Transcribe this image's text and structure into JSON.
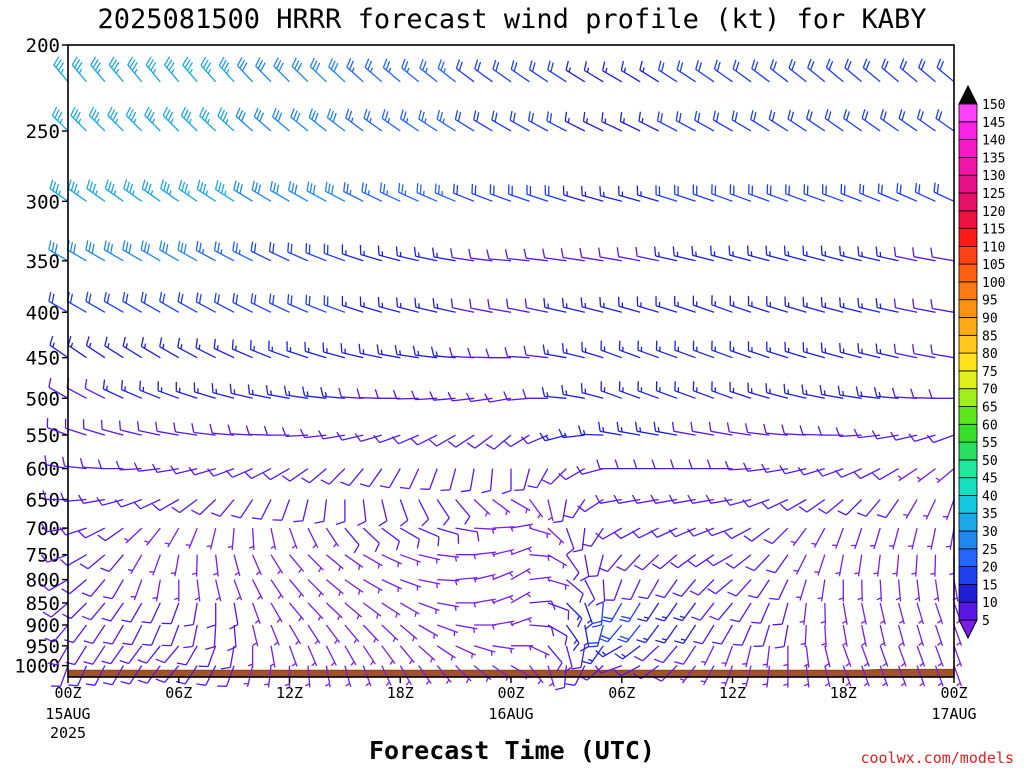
{
  "chart_data": {
    "type": "wind_barb_profile",
    "title": "2025081500 HRRR forecast wind profile (kt) for KABY",
    "xlabel": "Forecast Time (UTC)",
    "watermark": "coolwx.com/models",
    "y_axis": {
      "label": "",
      "scale": "pressure (hPa), inverted",
      "ylim": [
        1030,
        200
      ],
      "ticks": [
        200,
        250,
        300,
        350,
        400,
        450,
        500,
        550,
        600,
        650,
        700,
        750,
        800,
        850,
        900,
        950,
        1000
      ]
    },
    "x_axis": {
      "range_hours": [
        0,
        48
      ],
      "ticks": [
        {
          "hour": 0,
          "label": "00Z",
          "sub": [
            "15AUG",
            "2025"
          ]
        },
        {
          "hour": 6,
          "label": "06Z",
          "sub": []
        },
        {
          "hour": 12,
          "label": "12Z",
          "sub": []
        },
        {
          "hour": 18,
          "label": "18Z",
          "sub": []
        },
        {
          "hour": 24,
          "label": "00Z",
          "sub": [
            "16AUG"
          ]
        },
        {
          "hour": 30,
          "label": "06Z",
          "sub": []
        },
        {
          "hour": 36,
          "label": "12Z",
          "sub": []
        },
        {
          "hour": 42,
          "label": "18Z",
          "sub": []
        },
        {
          "hour": 48,
          "label": "00Z",
          "sub": [
            "17AUG"
          ]
        }
      ]
    },
    "colorbar": {
      "levels": [
        5,
        10,
        15,
        20,
        25,
        30,
        35,
        40,
        45,
        50,
        55,
        60,
        65,
        70,
        75,
        80,
        85,
        90,
        95,
        100,
        105,
        110,
        115,
        120,
        125,
        130,
        135,
        140,
        145,
        150
      ],
      "colors": [
        "#7a1de8",
        "#5a16e6",
        "#1f1fd6",
        "#1e3ff0",
        "#2266ff",
        "#1e88ee",
        "#1aa8e8",
        "#12c8e0",
        "#16e0c0",
        "#1ee89a",
        "#28e060",
        "#36e028",
        "#5ee61a",
        "#a0ee1a",
        "#e0f01a",
        "#ffe41a",
        "#ffc81a",
        "#ffaa12",
        "#ff9010",
        "#ff7a10",
        "#ff6010",
        "#ff4010",
        "#ff1a1a",
        "#f0123e",
        "#e8106a",
        "#e81088",
        "#f014a8",
        "#f818c8",
        "#ff22e8",
        "#ff40ff"
      ]
    },
    "profile": {
      "levels": [
        1000,
        950,
        900,
        850,
        800,
        750,
        700,
        650,
        600,
        550,
        500,
        450,
        400,
        350,
        300,
        250,
        220
      ],
      "time_step_hours": 1,
      "surface_pressure_hpa": [
        1012,
        1012,
        1012,
        1012,
        1012,
        1012,
        1012,
        1012,
        1012,
        1012,
        1012,
        1012,
        1012,
        1012,
        1012,
        1012,
        1012,
        1012,
        1012,
        1012,
        1012,
        1012,
        1012,
        1012,
        1012,
        1012,
        1012,
        1012,
        1012,
        1012,
        1012,
        1012,
        1012,
        1012,
        1012,
        1012,
        1012,
        1012,
        1012,
        1012,
        1012,
        1012,
        1012,
        1012,
        1010,
        1010,
        1010,
        1010,
        1010
      ],
      "speed_kt_by_level_at_00Z_06Z_12Z_18Z_00Z_06Z_12Z_18Z_00Z": {
        "1000": [
          10,
          10,
          5,
          5,
          5,
          10,
          5,
          5,
          5
        ],
        "950": [
          10,
          10,
          5,
          5,
          5,
          15,
          5,
          5,
          5
        ],
        "900": [
          10,
          10,
          5,
          5,
          5,
          20,
          10,
          5,
          5
        ],
        "850": [
          10,
          10,
          5,
          5,
          5,
          20,
          10,
          5,
          5
        ],
        "800": [
          10,
          5,
          5,
          5,
          5,
          10,
          10,
          5,
          5
        ],
        "750": [
          10,
          5,
          5,
          5,
          5,
          10,
          10,
          5,
          5
        ],
        "700": [
          10,
          5,
          5,
          10,
          5,
          10,
          10,
          5,
          5
        ],
        "650": [
          10,
          10,
          10,
          10,
          5,
          10,
          10,
          10,
          5
        ],
        "600": [
          10,
          10,
          10,
          10,
          10,
          10,
          10,
          10,
          5
        ],
        "550": [
          10,
          10,
          10,
          10,
          10,
          15,
          10,
          10,
          10
        ],
        "500": [
          10,
          15,
          15,
          10,
          10,
          15,
          15,
          15,
          10
        ],
        "450": [
          15,
          15,
          15,
          15,
          10,
          15,
          15,
          15,
          10
        ],
        "400": [
          20,
          20,
          20,
          15,
          10,
          15,
          15,
          15,
          10
        ],
        "350": [
          30,
          30,
          20,
          15,
          10,
          10,
          15,
          15,
          10
        ],
        "300": [
          35,
          35,
          30,
          25,
          20,
          15,
          20,
          20,
          20
        ],
        "250": [
          35,
          35,
          30,
          25,
          20,
          15,
          20,
          20,
          20
        ],
        "220": [
          35,
          35,
          30,
          25,
          20,
          15,
          20,
          20,
          20
        ]
      },
      "direction_from_deg_by_level_at_00Z_06Z_12Z_18Z_00Z_06Z_12Z_18Z_00Z": {
        "1000": [
          200,
          220,
          180,
          150,
          120,
          250,
          200,
          160,
          160
        ],
        "950": [
          210,
          220,
          160,
          140,
          90,
          240,
          200,
          160,
          160
        ],
        "900": [
          220,
          200,
          150,
          130,
          70,
          220,
          210,
          170,
          160
        ],
        "850": [
          230,
          200,
          140,
          120,
          60,
          210,
          220,
          170,
          160
        ],
        "800": [
          240,
          180,
          140,
          110,
          60,
          200,
          230,
          180,
          170
        ],
        "750": [
          250,
          190,
          140,
          110,
          70,
          220,
          240,
          190,
          180
        ],
        "700": [
          260,
          210,
          160,
          120,
          80,
          240,
          250,
          200,
          190
        ],
        "650": [
          270,
          240,
          200,
          160,
          120,
          260,
          260,
          230,
          200
        ],
        "600": [
          280,
          260,
          240,
          210,
          180,
          270,
          270,
          250,
          230
        ],
        "550": [
          290,
          280,
          270,
          250,
          230,
          280,
          280,
          270,
          250
        ],
        "500": [
          300,
          290,
          280,
          270,
          260,
          290,
          290,
          280,
          270
        ],
        "450": [
          305,
          300,
          290,
          280,
          270,
          290,
          290,
          285,
          280
        ],
        "400": [
          300,
          300,
          295,
          285,
          280,
          285,
          290,
          285,
          280
        ],
        "350": [
          300,
          300,
          295,
          285,
          275,
          280,
          285,
          285,
          280
        ],
        "300": [
          305,
          305,
          300,
          295,
          290,
          285,
          290,
          290,
          295
        ],
        "250": [
          315,
          315,
          310,
          305,
          300,
          295,
          300,
          305,
          305
        ],
        "220": [
          320,
          320,
          315,
          310,
          305,
          300,
          305,
          310,
          310
        ]
      }
    }
  }
}
